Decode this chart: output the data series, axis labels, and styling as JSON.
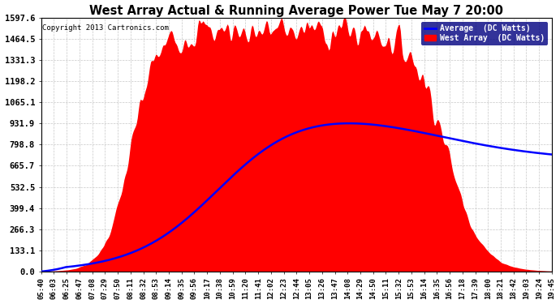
{
  "title": "West Array Actual & Running Average Power Tue May 7 20:00",
  "copyright": "Copyright 2013 Cartronics.com",
  "legend_avg": "Average  (DC Watts)",
  "legend_west": "West Array  (DC Watts)",
  "ymax": 1597.6,
  "ymin": 0.0,
  "yticks": [
    0.0,
    133.1,
    266.3,
    399.4,
    532.5,
    665.7,
    798.8,
    931.9,
    1065.1,
    1198.2,
    1331.3,
    1464.5,
    1597.6
  ],
  "background_color": "#ffffff",
  "grid_color": "#c8c8c8",
  "fill_color": "#ff0000",
  "avg_line_color": "#0000ff",
  "title_color": "#000000",
  "copyright_color": "#000000",
  "xtick_labels": [
    "05:40",
    "06:03",
    "06:25",
    "06:47",
    "07:08",
    "07:29",
    "07:50",
    "08:11",
    "08:32",
    "08:53",
    "09:14",
    "09:35",
    "09:56",
    "10:17",
    "10:38",
    "10:59",
    "11:20",
    "11:41",
    "12:02",
    "12:23",
    "12:44",
    "13:05",
    "13:26",
    "13:47",
    "14:08",
    "14:29",
    "14:50",
    "15:11",
    "15:32",
    "15:53",
    "16:14",
    "16:35",
    "16:56",
    "17:18",
    "17:39",
    "18:00",
    "18:21",
    "18:42",
    "19:03",
    "19:24",
    "19:45"
  ],
  "figsize": [
    6.9,
    3.75
  ],
  "dpi": 100
}
